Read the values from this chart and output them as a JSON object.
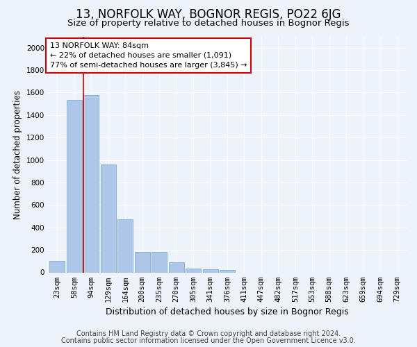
{
  "title": "13, NORFOLK WAY, BOGNOR REGIS, PO22 6JG",
  "subtitle": "Size of property relative to detached houses in Bognor Regis",
  "xlabel": "Distribution of detached houses by size in Bognor Regis",
  "ylabel": "Number of detached properties",
  "categories": [
    "23sqm",
    "58sqm",
    "94sqm",
    "129sqm",
    "164sqm",
    "200sqm",
    "235sqm",
    "270sqm",
    "305sqm",
    "341sqm",
    "376sqm",
    "411sqm",
    "447sqm",
    "482sqm",
    "517sqm",
    "553sqm",
    "588sqm",
    "623sqm",
    "659sqm",
    "694sqm",
    "729sqm"
  ],
  "values": [
    105,
    1535,
    1580,
    960,
    470,
    185,
    185,
    90,
    37,
    27,
    20,
    0,
    0,
    0,
    0,
    0,
    0,
    0,
    0,
    0,
    0
  ],
  "bar_color": "#aec6e8",
  "bar_edge_color": "#7aafd4",
  "property_line_color": "#cc0000",
  "annotation_line1": "13 NORFOLK WAY: 84sqm",
  "annotation_line2": "← 22% of detached houses are smaller (1,091)",
  "annotation_line3": "77% of semi-detached houses are larger (3,845) →",
  "annotation_box_color": "#cc0000",
  "ylim": [
    0,
    2100
  ],
  "yticks": [
    0,
    200,
    400,
    600,
    800,
    1000,
    1200,
    1400,
    1600,
    1800,
    2000
  ],
  "footer_line1": "Contains HM Land Registry data © Crown copyright and database right 2024.",
  "footer_line2": "Contains public sector information licensed under the Open Government Licence v3.0.",
  "bg_color": "#eef2fa",
  "plot_bg_color": "#eef2fa",
  "grid_color": "#ffffff",
  "title_fontsize": 12,
  "subtitle_fontsize": 9.5,
  "xlabel_fontsize": 9,
  "ylabel_fontsize": 8.5,
  "tick_fontsize": 7.5,
  "annotation_fontsize": 8,
  "footer_fontsize": 7
}
